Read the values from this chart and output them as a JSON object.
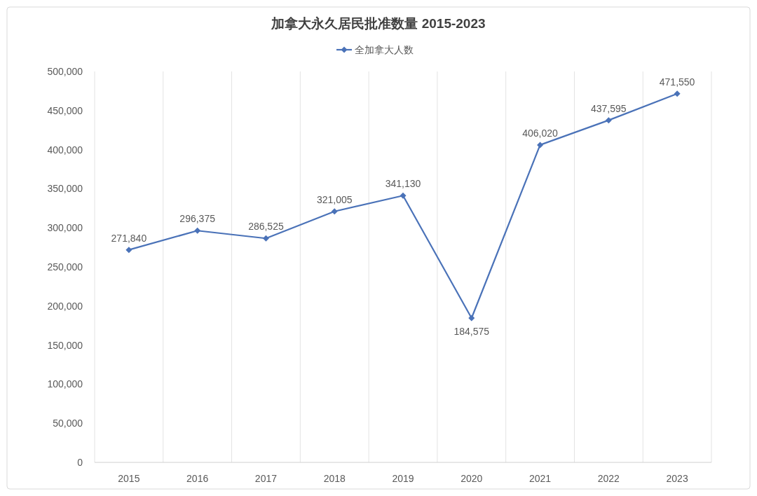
{
  "chart_data": {
    "type": "line",
    "title": "加拿大永久居民批准数量 2015-2023",
    "categories": [
      "2015",
      "2016",
      "2017",
      "2018",
      "2019",
      "2020",
      "2021",
      "2022",
      "2023"
    ],
    "series": [
      {
        "name": "全加拿大人数",
        "color": "#4a72b8",
        "values": [
          271840,
          296375,
          286525,
          321005,
          341130,
          184575,
          406020,
          437595,
          471550
        ],
        "value_labels": [
          "271,840",
          "296,375",
          "286,525",
          "321,005",
          "341,130",
          "184,575",
          "406,020",
          "437,595",
          "471,550"
        ]
      }
    ],
    "ylim": [
      0,
      500000
    ],
    "yticks": [
      {
        "value": 0,
        "label": "0"
      },
      {
        "value": 50000,
        "label": "50,000"
      },
      {
        "value": 100000,
        "label": "100,000"
      },
      {
        "value": 150000,
        "label": "150,000"
      },
      {
        "value": 200000,
        "label": "200,000"
      },
      {
        "value": 250000,
        "label": "250,000"
      },
      {
        "value": 300000,
        "label": "300,000"
      },
      {
        "value": 350000,
        "label": "350,000"
      },
      {
        "value": 400000,
        "label": "400,000"
      },
      {
        "value": 450000,
        "label": "450,000"
      },
      {
        "value": 500000,
        "label": "500,000"
      }
    ],
    "grid": "x",
    "legend": "top",
    "marker": "diamond",
    "line_style": "solid"
  }
}
